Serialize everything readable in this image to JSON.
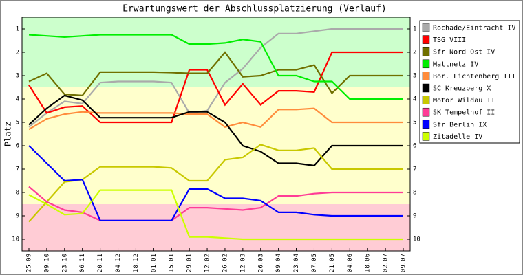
{
  "chart_data": {
    "type": "line",
    "title": "Erwartungswert der Abschlussplatzierung (Verlauf)",
    "y_label": "Platz",
    "y_inverted": true,
    "categories": [
      "25.09",
      "09.10",
      "23.10",
      "06.11",
      "20.11",
      "04.12",
      "18.12",
      "01.01",
      "15.01",
      "29.01",
      "12.02",
      "26.02",
      "12.03",
      "26.03",
      "09.04",
      "23.04",
      "07.05",
      "21.05",
      "04.06",
      "18.06",
      "02.07",
      "09.07"
    ],
    "ylim": [
      0.5,
      10.5
    ],
    "yticks": [
      1,
      2,
      3,
      4,
      5,
      6,
      7,
      8,
      9,
      10
    ],
    "zones": [
      {
        "from": 0.5,
        "to": 3.5,
        "color": "#ccffcc"
      },
      {
        "from": 3.5,
        "to": 8.5,
        "color": "#ffffcc"
      },
      {
        "from": 8.5,
        "to": 10.5,
        "color": "#ffccd5"
      }
    ],
    "legend": "right",
    "series": [
      {
        "name": "Rochade/Eintracht IV",
        "color": "#aaaaaa",
        "values": [
          5.2,
          4.6,
          4.1,
          4.2,
          3.3,
          3.25,
          3.25,
          3.25,
          3.3,
          4.6,
          4.5,
          3.3,
          2.7,
          1.8,
          1.2,
          1.2,
          1.1,
          1.0,
          1.0,
          1.0,
          1.0,
          1.0
        ]
      },
      {
        "name": "TSG VIII",
        "color": "#ff0000",
        "values": [
          3.4,
          4.6,
          4.35,
          4.3,
          5.0,
          5.0,
          5.0,
          5.0,
          5.0,
          2.75,
          2.75,
          4.25,
          3.35,
          4.25,
          3.65,
          3.65,
          3.7,
          2.0,
          2.0,
          2.0,
          2.0,
          2.0
        ]
      },
      {
        "name": "Sfr Nord-Ost IV",
        "color": "#707000",
        "values": [
          3.25,
          2.9,
          3.8,
          3.85,
          2.85,
          2.85,
          2.85,
          2.85,
          2.87,
          2.9,
          2.9,
          2.0,
          3.05,
          3.0,
          2.75,
          2.75,
          2.55,
          3.75,
          3.0,
          3.0,
          3.0,
          3.0
        ]
      },
      {
        "name": "Mattnetz IV",
        "color": "#00ee00",
        "values": [
          1.25,
          1.3,
          1.35,
          1.3,
          1.25,
          1.25,
          1.25,
          1.25,
          1.25,
          1.65,
          1.65,
          1.6,
          1.45,
          1.55,
          3.0,
          3.0,
          3.25,
          3.25,
          4.0,
          4.0,
          4.0,
          4.0
        ]
      },
      {
        "name": "Bor. Lichtenberg III",
        "color": "#ff8c3c",
        "values": [
          5.3,
          4.85,
          4.65,
          4.55,
          4.6,
          4.6,
          4.6,
          4.6,
          4.6,
          4.65,
          4.65,
          5.2,
          5.0,
          5.2,
          4.45,
          4.45,
          4.4,
          5.0,
          5.0,
          5.0,
          5.0,
          5.0
        ]
      },
      {
        "name": "SC Kreuzberg X",
        "color": "#000000",
        "values": [
          5.1,
          4.4,
          3.85,
          4.05,
          4.8,
          4.8,
          4.8,
          4.8,
          4.8,
          4.55,
          4.55,
          5.0,
          6.0,
          6.25,
          6.75,
          6.75,
          6.85,
          6.0,
          6.0,
          6.0,
          6.0,
          6.0
        ]
      },
      {
        "name": "Motor Wildau II",
        "color": "#c8c800",
        "values": [
          9.25,
          8.4,
          7.55,
          7.45,
          6.9,
          6.9,
          6.9,
          6.9,
          6.95,
          7.5,
          7.5,
          6.6,
          6.5,
          5.95,
          6.2,
          6.2,
          6.1,
          7.0,
          7.0,
          7.0,
          7.0,
          7.0
        ]
      },
      {
        "name": "SK Tempelhof II",
        "color": "#ff3c96",
        "values": [
          7.75,
          8.4,
          8.75,
          8.85,
          9.2,
          9.2,
          9.2,
          9.2,
          9.2,
          8.65,
          8.65,
          8.7,
          8.75,
          8.65,
          8.15,
          8.15,
          8.05,
          8.0,
          8.0,
          8.0,
          8.0,
          8.0
        ]
      },
      {
        "name": "Sfr Berlin IX",
        "color": "#0000ff",
        "values": [
          6.0,
          6.75,
          7.5,
          7.45,
          9.2,
          9.2,
          9.2,
          9.2,
          9.2,
          7.85,
          7.85,
          8.25,
          8.25,
          8.35,
          8.85,
          8.85,
          8.95,
          9.0,
          9.0,
          9.0,
          9.0,
          9.0
        ]
      },
      {
        "name": "Zitadelle IV",
        "color": "#ccff00",
        "values": [
          8.1,
          8.5,
          8.95,
          8.9,
          7.9,
          7.9,
          7.9,
          7.9,
          7.9,
          9.9,
          9.9,
          9.95,
          10.0,
          10.0,
          10.0,
          10.0,
          10.0,
          10.0,
          10.0,
          10.0,
          10.0,
          10.0
        ]
      }
    ]
  }
}
